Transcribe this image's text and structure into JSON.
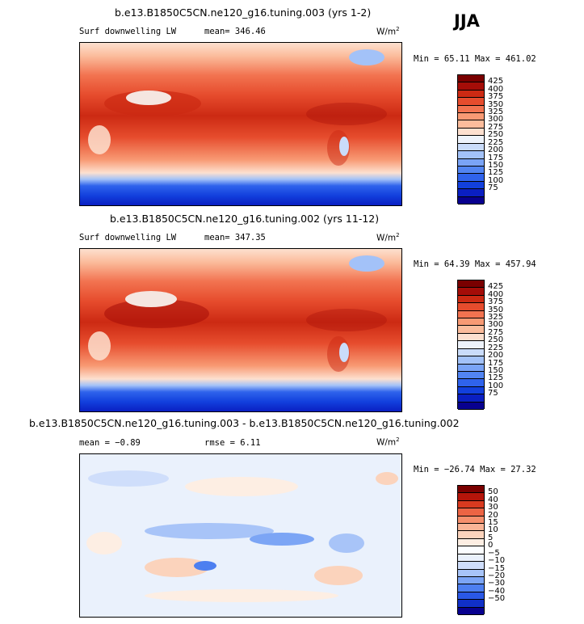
{
  "season": "JJA",
  "colors": {
    "abs_scale": [
      "#08008f",
      "#0a1fc2",
      "#1240dd",
      "#2f63ec",
      "#5285f2",
      "#7aa4f6",
      "#a3c2f8",
      "#cadcfa",
      "#eef3fb",
      "#fde0cf",
      "#fbbc9c",
      "#f89a74",
      "#f27350",
      "#e64c2d",
      "#cc2a13",
      "#a50d08",
      "#7a0000"
    ],
    "diff_scale": [
      "#08008f",
      "#1030c8",
      "#2a58e6",
      "#4d7ff0",
      "#7ca5f5",
      "#a8c4f8",
      "#cfdefb",
      "#eaf1fc",
      "#fbfdff",
      "#fdeee3",
      "#fbd3bc",
      "#f9b497",
      "#f58f6d",
      "#ec6444",
      "#d93a1f",
      "#b5150a",
      "#7a0000"
    ]
  },
  "panels": [
    {
      "title": "b.e13.B1850C5CN.ne120_g16.tuning.003 (yrs 1-2)",
      "variable": "Surf downwelling LW",
      "mean_text": "mean= 346.46",
      "units": "W/m",
      "units_exp": "2",
      "minmax": "Min =  65.11 Max = 461.02",
      "colorbar_labels": [
        "425",
        "400",
        "375",
        "350",
        "325",
        "300",
        "275",
        "250",
        "225",
        "200",
        "175",
        "150",
        "125",
        "100",
        "75"
      ]
    },
    {
      "title": "b.e13.B1850C5CN.ne120_g16.tuning.002 (yrs 11-12)",
      "variable": "Surf downwelling LW",
      "mean_text": "mean= 347.35",
      "units": "W/m",
      "units_exp": "2",
      "minmax": "Min =  64.39 Max = 457.94",
      "colorbar_labels": [
        "425",
        "400",
        "375",
        "350",
        "325",
        "300",
        "275",
        "250",
        "225",
        "200",
        "175",
        "150",
        "125",
        "100",
        "75"
      ]
    },
    {
      "title": "b.e13.B1850C5CN.ne120_g16.tuning.003 - b.e13.B1850C5CN.ne120_g16.tuning.002",
      "mean_text": "mean =  −0.89",
      "rmse_text": "rmse =   6.11",
      "units": "W/m",
      "units_exp": "2",
      "minmax": "Min = −26.74 Max =  27.32",
      "colorbar_labels": [
        "50",
        "40",
        "30",
        "20",
        "15",
        "10",
        "5",
        "0",
        "−5",
        "−10",
        "−15",
        "−20",
        "−30",
        "−40",
        "−50"
      ]
    }
  ],
  "chart_data": [
    {
      "type": "heatmap",
      "title": "b.e13.B1850C5CN.ne120_g16.tuning.003 (yrs 1-2)",
      "variable": "Surf downwelling LW",
      "units": "W/m^2",
      "mean": 346.46,
      "min": 65.11,
      "max": 461.02,
      "levels": [
        75,
        100,
        125,
        150,
        175,
        200,
        225,
        250,
        275,
        300,
        325,
        350,
        375,
        400,
        425
      ]
    },
    {
      "type": "heatmap",
      "title": "b.e13.B1850C5CN.ne120_g16.tuning.002 (yrs 11-12)",
      "variable": "Surf downwelling LW",
      "units": "W/m^2",
      "mean": 347.35,
      "min": 64.39,
      "max": 457.94,
      "levels": [
        75,
        100,
        125,
        150,
        175,
        200,
        225,
        250,
        275,
        300,
        325,
        350,
        375,
        400,
        425
      ]
    },
    {
      "type": "heatmap",
      "title": "b.e13.B1850C5CN.ne120_g16.tuning.003 - b.e13.B1850C5CN.ne120_g16.tuning.002",
      "units": "W/m^2",
      "mean": -0.89,
      "rmse": 6.11,
      "min": -26.74,
      "max": 27.32,
      "levels": [
        -50,
        -40,
        -30,
        -20,
        -15,
        -10,
        -5,
        0,
        5,
        10,
        15,
        20,
        30,
        40,
        50
      ]
    }
  ]
}
